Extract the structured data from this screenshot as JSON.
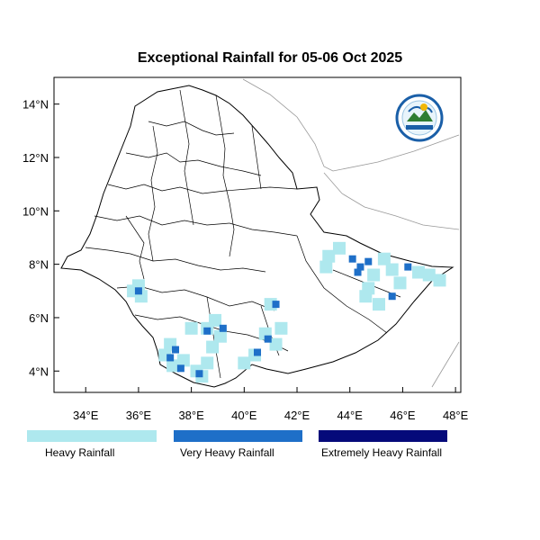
{
  "title": "Exceptional Rainfall for 05-06 Oct 2025",
  "x_axis": {
    "ticks": [
      34,
      36,
      38,
      40,
      42,
      44,
      46,
      48
    ],
    "tick_labels": [
      "34°E",
      "36°E",
      "38°E",
      "40°E",
      "42°E",
      "44°E",
      "46°E",
      "48°E"
    ],
    "range": [
      32.8,
      48.2
    ]
  },
  "y_axis": {
    "ticks": [
      4,
      6,
      8,
      10,
      12,
      14
    ],
    "tick_labels": [
      "4°N",
      "6°N",
      "8°N",
      "10°N",
      "12°N",
      "14°N"
    ],
    "range": [
      3.2,
      15.0
    ]
  },
  "legend": [
    {
      "label": "Heavy Rainfall",
      "color": "#aee8ee"
    },
    {
      "label": "Very Heavy Rainfall",
      "color": "#1e6fc8"
    },
    {
      "label": "Extremely Heavy Rainfall",
      "color": "#050a7a"
    }
  ],
  "rain_cells": {
    "heavy": [
      [
        36.0,
        7.2
      ],
      [
        35.8,
        7.0
      ],
      [
        36.1,
        6.8
      ],
      [
        37.2,
        5.0
      ],
      [
        37.0,
        4.6
      ],
      [
        37.3,
        4.2
      ],
      [
        37.7,
        4.4
      ],
      [
        38.2,
        4.0
      ],
      [
        38.4,
        3.8
      ],
      [
        38.6,
        4.3
      ],
      [
        38.0,
        5.6
      ],
      [
        38.6,
        5.6
      ],
      [
        38.9,
        5.9
      ],
      [
        39.1,
        5.3
      ],
      [
        38.8,
        4.9
      ],
      [
        40.8,
        5.4
      ],
      [
        41.2,
        5.0
      ],
      [
        41.4,
        5.6
      ],
      [
        40.4,
        4.6
      ],
      [
        40.0,
        4.3
      ],
      [
        41.0,
        6.5
      ],
      [
        43.2,
        8.3
      ],
      [
        43.1,
        7.9
      ],
      [
        43.6,
        8.6
      ],
      [
        44.9,
        7.6
      ],
      [
        45.3,
        8.2
      ],
      [
        45.6,
        7.8
      ],
      [
        45.9,
        7.3
      ],
      [
        46.6,
        7.7
      ],
      [
        47.0,
        7.6
      ],
      [
        47.4,
        7.4
      ],
      [
        44.7,
        7.1
      ],
      [
        44.6,
        6.8
      ],
      [
        45.1,
        6.5
      ]
    ],
    "very_heavy": [
      [
        36.0,
        7.0
      ],
      [
        37.4,
        4.8
      ],
      [
        37.2,
        4.5
      ],
      [
        37.6,
        4.1
      ],
      [
        38.3,
        3.9
      ],
      [
        38.6,
        5.5
      ],
      [
        39.2,
        5.6
      ],
      [
        40.5,
        4.7
      ],
      [
        40.9,
        5.2
      ],
      [
        41.2,
        6.5
      ],
      [
        44.1,
        8.2
      ],
      [
        44.4,
        7.9
      ],
      [
        44.7,
        8.1
      ],
      [
        44.3,
        7.7
      ],
      [
        46.2,
        7.9
      ],
      [
        45.6,
        6.8
      ]
    ],
    "extreme": []
  }
}
